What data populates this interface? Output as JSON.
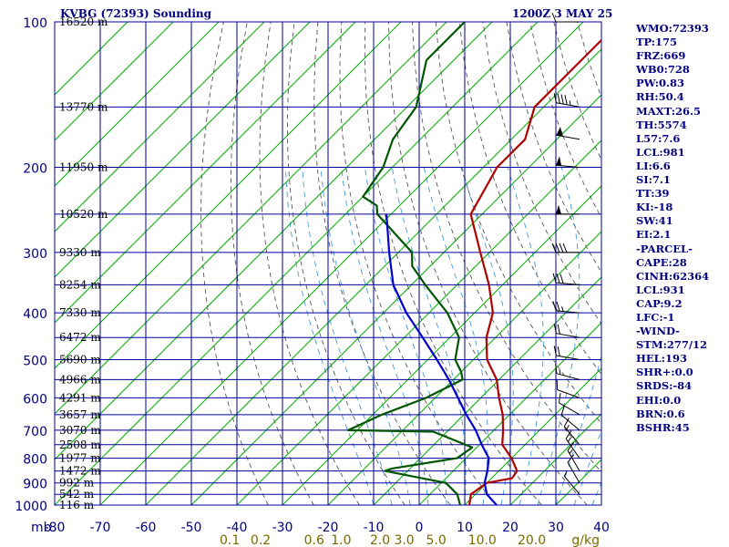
{
  "header": {
    "station_title": "KVBG (72393) Sounding",
    "valid_time": "1200Z  3 MAY 25"
  },
  "chart_data": {
    "type": "line",
    "title": "KVBG (72393) Sounding",
    "subtitle": "1200Z  3 MAY 25",
    "pressure_unit_label": "mb",
    "mixing_ratio_unit_label": "g/kg",
    "pressure_axis": {
      "scale": "log",
      "range": [
        1000,
        100
      ],
      "ticks": [
        100,
        200,
        300,
        400,
        500,
        600,
        700,
        800,
        900,
        1000
      ]
    },
    "temperature_axis": {
      "range": [
        -80,
        40
      ],
      "ticks": [
        -80,
        -70,
        -60,
        -50,
        -40,
        -30,
        -20,
        -10,
        0,
        10,
        20,
        30,
        40
      ],
      "tick_labels": [
        "-80",
        "-70",
        "-60",
        "-50",
        "-40",
        "-30",
        "-20",
        "-10",
        "0",
        "10",
        "20",
        "30",
        "40"
      ]
    },
    "mixing_ratio_labels": [
      "0.1",
      "0.2",
      "0.6",
      "1.0",
      "2.0",
      "3.0",
      "5.0",
      "10.0",
      "20.0"
    ],
    "height_labels": [
      {
        "p": 100,
        "label": "16520 m"
      },
      {
        "p": 150,
        "label": "13770 m"
      },
      {
        "p": 200,
        "label": "11950 m"
      },
      {
        "p": 250,
        "label": "10520 m"
      },
      {
        "p": 300,
        "label": "9330 m"
      },
      {
        "p": 350,
        "label": "8254 m"
      },
      {
        "p": 400,
        "label": "7330 m"
      },
      {
        "p": 450,
        "label": "6472 m"
      },
      {
        "p": 500,
        "label": "5690 m"
      },
      {
        "p": 550,
        "label": "4966 m"
      },
      {
        "p": 600,
        "label": "4291 m"
      },
      {
        "p": 650,
        "label": "3657 m"
      },
      {
        "p": 700,
        "label": "3070 m"
      },
      {
        "p": 750,
        "label": "2508 m"
      },
      {
        "p": 800,
        "label": "1977 m"
      },
      {
        "p": 850,
        "label": "1472 m"
      },
      {
        "p": 900,
        "label": "992 m"
      },
      {
        "p": 950,
        "label": "542 m"
      },
      {
        "p": 1000,
        "label": "116 m"
      }
    ],
    "series": [
      {
        "name": "Temperature",
        "color": "#b00000",
        "points": [
          [
            100,
            -62
          ],
          [
            150,
            -62
          ],
          [
            175,
            -57
          ],
          [
            200,
            -57
          ],
          [
            250,
            -52.5
          ],
          [
            300,
            -42
          ],
          [
            350,
            -33
          ],
          [
            400,
            -26
          ],
          [
            450,
            -22
          ],
          [
            500,
            -17
          ],
          [
            550,
            -10.5
          ],
          [
            600,
            -6
          ],
          [
            650,
            -1.5
          ],
          [
            700,
            2
          ],
          [
            750,
            5
          ],
          [
            800,
            10
          ],
          [
            850,
            14
          ],
          [
            880,
            14.5
          ],
          [
            900,
            10
          ],
          [
            950,
            9
          ],
          [
            1000,
            11
          ]
        ]
      },
      {
        "name": "Dewpoint",
        "color": "#005500",
        "points": [
          [
            100,
            -96
          ],
          [
            120,
            -96
          ],
          [
            150,
            -88
          ],
          [
            175,
            -86
          ],
          [
            200,
            -82
          ],
          [
            230,
            -80
          ],
          [
            240,
            -75
          ],
          [
            250,
            -73
          ],
          [
            300,
            -57
          ],
          [
            320,
            -54
          ],
          [
            350,
            -47
          ],
          [
            400,
            -36
          ],
          [
            450,
            -28
          ],
          [
            500,
            -24
          ],
          [
            530,
            -20
          ],
          [
            550,
            -18
          ],
          [
            600,
            -22
          ],
          [
            650,
            -28
          ],
          [
            700,
            -32
          ],
          [
            705,
            -13
          ],
          [
            760,
            -1
          ],
          [
            800,
            -2
          ],
          [
            840,
            -14
          ],
          [
            850,
            -15
          ],
          [
            900,
            1
          ],
          [
            950,
            6
          ],
          [
            1000,
            9
          ]
        ]
      },
      {
        "name": "Parcel",
        "color": "#0000cc",
        "points": [
          [
            250,
            -71
          ],
          [
            300,
            -62
          ],
          [
            350,
            -54
          ],
          [
            400,
            -45
          ],
          [
            450,
            -36
          ],
          [
            500,
            -28
          ],
          [
            550,
            -21
          ],
          [
            600,
            -15
          ],
          [
            650,
            -9.5
          ],
          [
            700,
            -4
          ],
          [
            750,
            0.5
          ],
          [
            800,
            5
          ],
          [
            850,
            7.5
          ],
          [
            900,
            9.5
          ],
          [
            950,
            12.5
          ],
          [
            1000,
            17
          ]
        ]
      }
    ],
    "wind_barbs": [
      {
        "p": 100,
        "dir": 270,
        "spd": 10
      },
      {
        "p": 150,
        "dir": 280,
        "spd": 45
      },
      {
        "p": 175,
        "dir": 280,
        "spd": 55
      },
      {
        "p": 200,
        "dir": 275,
        "spd": 50
      },
      {
        "p": 250,
        "dir": 270,
        "spd": 50
      },
      {
        "p": 300,
        "dir": 270,
        "spd": 40
      },
      {
        "p": 350,
        "dir": 275,
        "spd": 30
      },
      {
        "p": 400,
        "dir": 275,
        "spd": 25
      },
      {
        "p": 450,
        "dir": 280,
        "spd": 20
      },
      {
        "p": 500,
        "dir": 280,
        "spd": 20
      },
      {
        "p": 550,
        "dir": 285,
        "spd": 15
      },
      {
        "p": 600,
        "dir": 290,
        "spd": 10
      },
      {
        "p": 650,
        "dir": 300,
        "spd": 10
      },
      {
        "p": 700,
        "dir": 310,
        "spd": 10
      },
      {
        "p": 750,
        "dir": 320,
        "spd": 15
      },
      {
        "p": 800,
        "dir": 325,
        "spd": 15
      },
      {
        "p": 850,
        "dir": 330,
        "spd": 15
      },
      {
        "p": 900,
        "dir": 330,
        "spd": 10
      },
      {
        "p": 950,
        "dir": 320,
        "spd": 5
      }
    ],
    "grid": true
  },
  "indices": [
    "WMO:72393",
    "TP:175",
    "FRZ:669",
    "WB0:728",
    "PW:0.83",
    "RH:50.4",
    "MAXT:26.5",
    "TH:5574",
    "L57:7.6",
    "LCL:981",
    "LI:6.6",
    "SI:7.1",
    "TT:39",
    "KI:-18",
    "SW:41",
    "EI:2.1",
    "-PARCEL-",
    "CAPE:28",
    "CINH:62364",
    "LCL:931",
    "CAP:9.2",
    "LFC:-1",
    "-WIND-",
    "STM:277/12",
    "HEL:193",
    "SHR+:0.0",
    "SRDS:-84",
    "EHI:0.0",
    "BRN:0.6",
    "BSHR:45"
  ],
  "colors": {
    "axis_text": "#000080",
    "grid": "#0000a0",
    "isotherm": "#00aa00",
    "dry_adiabat": "#555555",
    "moist_adiabat": "#4499dd",
    "mixing_ratio_text": "#7a6a00"
  }
}
